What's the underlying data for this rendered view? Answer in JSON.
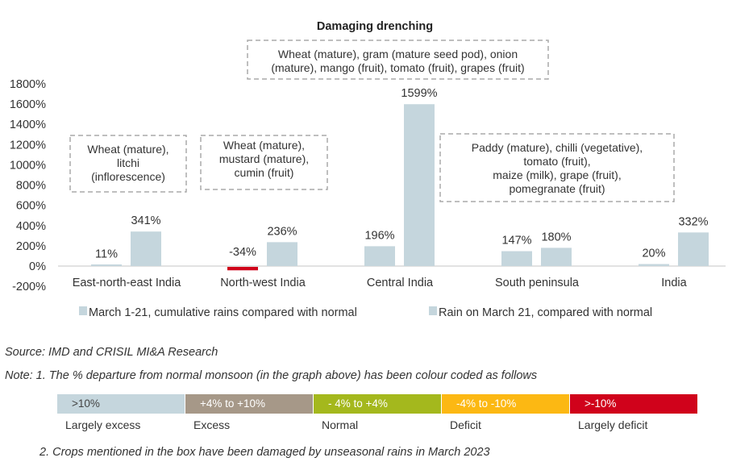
{
  "chart_data": {
    "type": "bar",
    "title": "Damaging drenching",
    "categories": [
      "East-north-east India",
      "North-west India",
      "Central India",
      "South peninsula",
      "India"
    ],
    "series": [
      {
        "name": "March 1-21, cumulative rains compared with normal",
        "values": [
          11,
          -34,
          196,
          147,
          20
        ],
        "labels": [
          "11%",
          "-34%",
          "196%",
          "147%",
          "20%"
        ]
      },
      {
        "name": "Rain on March 21, compared with normal",
        "values": [
          341,
          236,
          1599,
          180,
          332
        ],
        "labels": [
          "341%",
          "236%",
          "1599%",
          "180%",
          "332%"
        ]
      }
    ],
    "ylim": [
      -200,
      1800
    ],
    "yticks": [
      "1800%",
      "1600%",
      "1400%",
      "1200%",
      "1000%",
      "800%",
      "600%",
      "400%",
      "200%",
      "0%",
      "-200%"
    ],
    "legend_position": "bottom",
    "grid": false,
    "annotations": [
      {
        "lines": [
          "Wheat (mature),",
          "litchi",
          "(inflorescence)"
        ]
      },
      {
        "lines": [
          "Wheat (mature),",
          "mustard (mature),",
          "cumin (fruit)"
        ]
      },
      {
        "lines": [
          "Wheat (mature), gram (mature seed pod), onion",
          "(mature), mango (fruit), tomato (fruit), grapes (fruit)"
        ]
      },
      {
        "lines": [
          "Paddy (mature), chilli (vegetative),",
          "tomato (fruit),",
          "maize (milk), grape (fruit),",
          "pomegranate (fruit)"
        ]
      }
    ],
    "colors": {
      "bar": "#c5d6dd",
      "negative": "#d0021b",
      "axis": "#d9d9d9"
    }
  },
  "source": "Source: IMD and CRISIL MI&A Research",
  "note1": "Note: 1. The % departure from normal monsoon (in the graph above) has been colour coded as follows",
  "note2": "2. Crops mentioned in the box have been damaged by unseasonal rains in March 2023",
  "color_scale": [
    {
      "range": ">10%",
      "label": "Largely excess",
      "color": "#c5d6dd"
    },
    {
      "range": "+4% to +10%",
      "label": "Excess",
      "color": "#a69888"
    },
    {
      "range": "- 4% to +4%",
      "label": "Normal",
      "color": "#a4b81d"
    },
    {
      "range": "-4% to -10%",
      "label": "Deficit",
      "color": "#fcb813"
    },
    {
      "range": ">-10%",
      "label": "Largely deficit",
      "color": "#d0021b"
    }
  ]
}
